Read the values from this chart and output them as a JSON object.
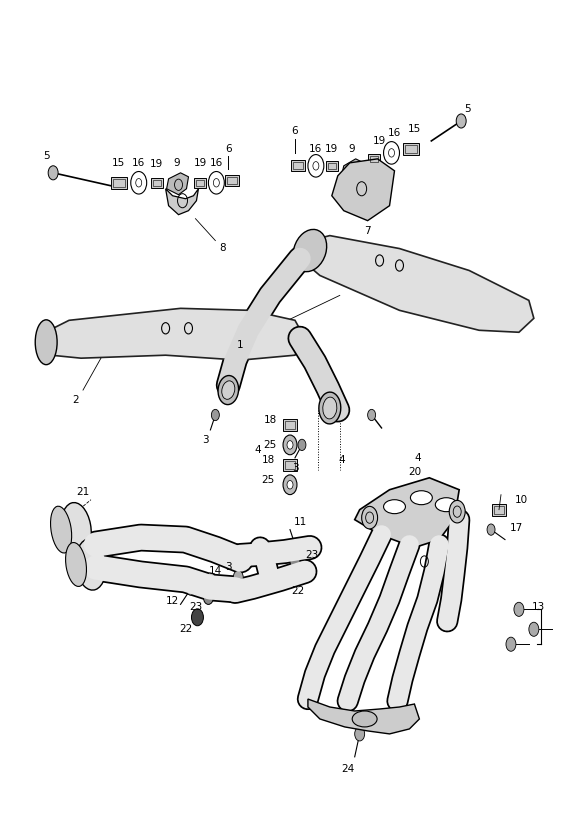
{
  "bg_color": "#ffffff",
  "fig_width": 5.83,
  "fig_height": 8.24,
  "dpi": 100,
  "parts_color": "#e8e8e8",
  "outline_color": "#222222",
  "label_fontsize": 7.5
}
